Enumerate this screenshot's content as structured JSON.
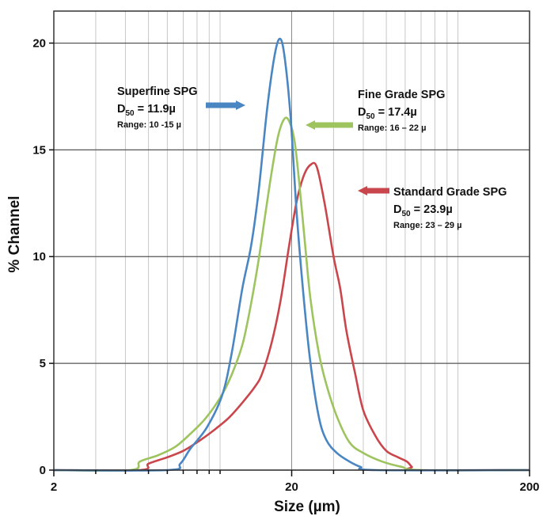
{
  "chart_data": {
    "type": "line",
    "title": "",
    "xlabel": "Size (µm)",
    "ylabel": "% Channel",
    "x_scale": "log",
    "xlim": [
      2,
      200
    ],
    "ylim": [
      0,
      21.5
    ],
    "x_ticks": [
      2,
      20,
      200
    ],
    "x_tick_labels": [
      "2",
      "20",
      "200"
    ],
    "y_ticks": [
      0,
      5,
      10,
      15,
      20
    ],
    "y_tick_labels": [
      "0",
      "5",
      "10",
      "15",
      "20"
    ],
    "grid": true,
    "series": [
      {
        "name": "Superfine SPG",
        "color": "#4a86c2",
        "x": [
          2,
          6.0,
          6.8,
          7.5,
          8.8,
          10.2,
          11.2,
          12.4,
          13.5,
          14.5,
          15.8,
          17.0,
          17.9,
          18.7,
          19.8,
          21.0,
          22.5,
          24.0,
          26.0,
          28.0,
          31.0,
          35.0,
          39.0,
          45.0,
          200
        ],
        "y": [
          0,
          0,
          0.3,
          1.0,
          2.0,
          3.5,
          5.5,
          8.5,
          10.5,
          13.0,
          17.0,
          19.5,
          20.2,
          19.3,
          16.5,
          12.0,
          8.0,
          5.0,
          2.5,
          1.4,
          0.8,
          0.4,
          0.15,
          0,
          0
        ]
      },
      {
        "name": "Fine Grade SPG",
        "color": "#9dc45f",
        "x": [
          2,
          4.2,
          4.6,
          5.5,
          6.5,
          7.5,
          8.5,
          9.5,
          10.5,
          11.5,
          12.5,
          13.5,
          14.5,
          15.5,
          16.5,
          17.5,
          18.5,
          19.4,
          20.5,
          21.5,
          22.8,
          24.0,
          26.0,
          28.0,
          31.0,
          35.0,
          40.0,
          48.0,
          58.0,
          70.0,
          200
        ],
        "y": [
          0,
          0,
          0.4,
          0.7,
          1.1,
          1.7,
          2.3,
          3.0,
          3.8,
          4.8,
          6.0,
          7.8,
          9.8,
          12.0,
          14.0,
          15.6,
          16.4,
          16.4,
          15.5,
          13.5,
          10.5,
          8.0,
          5.5,
          4.0,
          2.5,
          1.3,
          0.8,
          0.4,
          0.15,
          0,
          0
        ]
      },
      {
        "name": "Standard Grade SPG",
        "color": "#c9474c",
        "x": [
          2,
          4.6,
          5.0,
          6.0,
          7.0,
          8.0,
          9.0,
          10.0,
          11.0,
          12.5,
          14.0,
          15.0,
          16.5,
          18.0,
          19.5,
          21.0,
          22.5,
          24.0,
          25.5,
          27.5,
          30.0,
          32.0,
          34.0,
          37.0,
          40.0,
          45.0,
          50.0,
          56.0,
          61.0,
          64.0,
          67.0,
          200
        ],
        "y": [
          0,
          0,
          0.3,
          0.6,
          0.9,
          1.3,
          1.7,
          2.1,
          2.5,
          3.2,
          3.9,
          4.5,
          6.0,
          8.0,
          10.5,
          12.6,
          13.8,
          14.3,
          14.2,
          12.5,
          10.0,
          8.5,
          6.5,
          4.5,
          2.8,
          1.6,
          0.9,
          0.6,
          0.4,
          0.15,
          0,
          0
        ]
      }
    ],
    "annotations": [
      {
        "series": 0,
        "title": "Superfine SPG",
        "d50_value": "11.9µ",
        "range": "Range: 10 -15 µ",
        "arrow_color": "#4a86c2"
      },
      {
        "series": 1,
        "title": "Fine Grade SPG",
        "d50_value": "17.4µ",
        "range": "Range: 16 – 22 µ",
        "arrow_color": "#9dc45f"
      },
      {
        "series": 2,
        "title": "Standard Grade SPG",
        "d50_value": "23.9µ",
        "range": "Range: 23 – 29 µ",
        "arrow_color": "#c9474c"
      }
    ],
    "d50_label": "D",
    "d50_subscript": "50",
    "d50_equals": " = "
  }
}
